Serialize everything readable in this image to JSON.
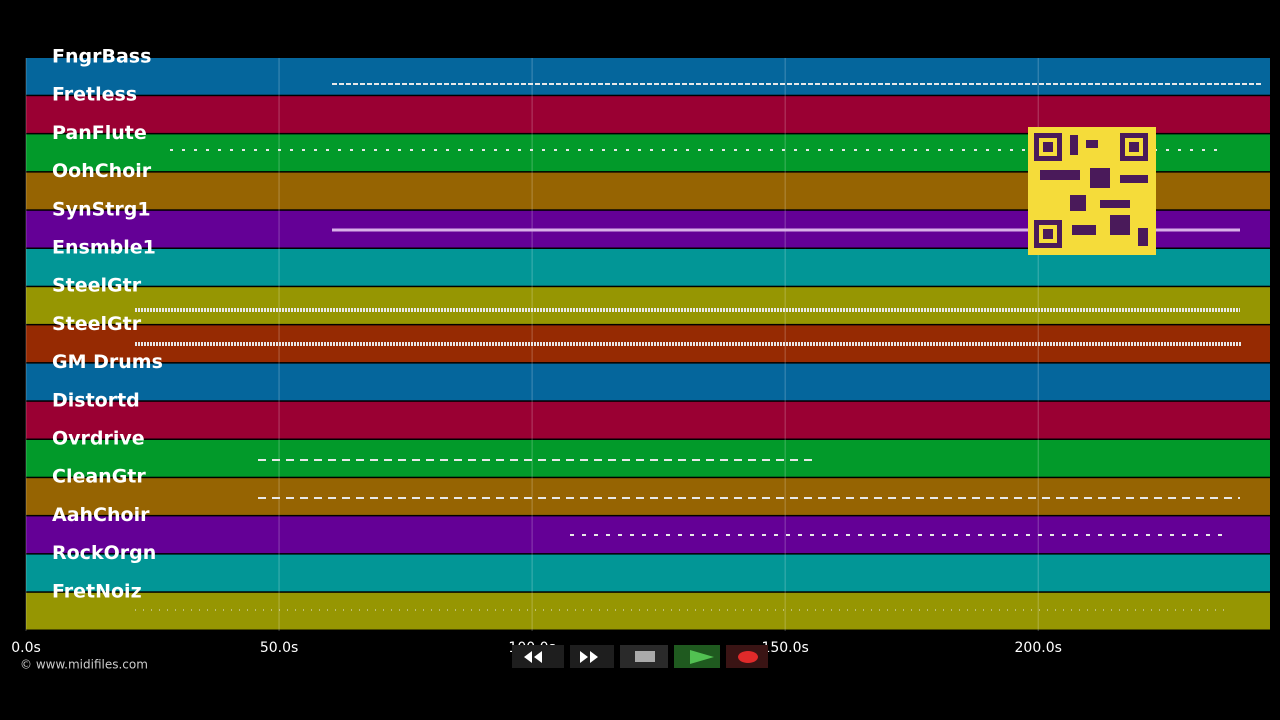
{
  "tracks": [
    {
      "name": "FngrBass",
      "color": "#05669c"
    },
    {
      "name": "Fretless",
      "color": "#9a0033"
    },
    {
      "name": "PanFlute",
      "color": "#029a2a"
    },
    {
      "name": "OohChoir",
      "color": "#966402"
    },
    {
      "name": "SynStrg1",
      "color": "#640096"
    },
    {
      "name": "Ensmble1",
      "color": "#029696"
    },
    {
      "name": "SteelGtr",
      "color": "#969602"
    },
    {
      "name": "SteelGtr",
      "color": "#962a02"
    },
    {
      "name": "GM Drums",
      "color": "#05669c"
    },
    {
      "name": "Distortd",
      "color": "#9a0033"
    },
    {
      "name": "Ovrdrive",
      "color": "#029a2a"
    },
    {
      "name": "CleanGtr",
      "color": "#966402"
    },
    {
      "name": "AahChoir",
      "color": "#640096"
    },
    {
      "name": "RockOrgn",
      "color": "#029696"
    },
    {
      "name": "FretNoiz",
      "color": "#969602"
    }
  ],
  "timeline": {
    "xlim": [
      0,
      245.8
    ],
    "ticks": [
      {
        "value": 0,
        "label": "0.0s"
      },
      {
        "value": 50,
        "label": "50.0s"
      },
      {
        "value": 100,
        "label": "100.0s"
      },
      {
        "value": 150,
        "label": "150.0s"
      },
      {
        "value": 200,
        "label": "200.0s"
      }
    ]
  },
  "footer": {
    "copyright": "© www.midifiles.com"
  }
}
